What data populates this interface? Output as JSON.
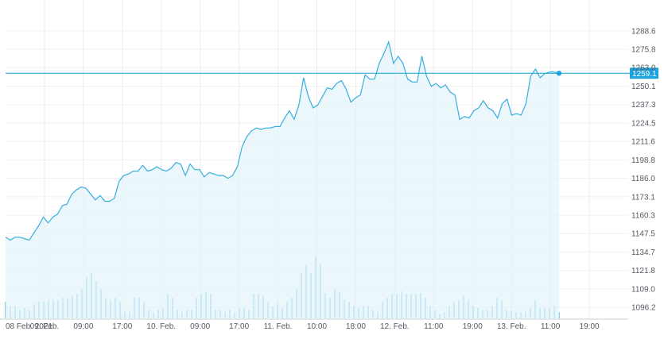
{
  "chart_data": {
    "type": "line",
    "title": "",
    "xlabel": "",
    "ylabel": "",
    "x_tick_labels": [
      "08 Feb. 2021",
      "09. Feb.",
      "09:00",
      "17:00",
      "10. Feb.",
      "09:00",
      "17:00",
      "11. Feb.",
      "10:00",
      "18:00",
      "12. Feb.",
      "11:00",
      "19:00",
      "13. Feb.",
      "11:00",
      "19:00"
    ],
    "y_tick_labels": [
      "1288.6",
      "1275.8",
      "1263.0",
      "1250.1",
      "1237.3",
      "1224.5",
      "1211.6",
      "1198.8",
      "1186.0",
      "1173.1",
      "1160.3",
      "1147.5",
      "1134.7",
      "1121.8",
      "1109.0",
      "1096.2"
    ],
    "ylim": [
      1088.5,
      1298.5
    ],
    "x_range_hours": [
      0,
      144
    ],
    "grid": true,
    "last_value_label": "1259.1",
    "series": [
      {
        "values": [
          1145,
          1143,
          1145,
          1145,
          1144,
          1143,
          1148,
          1153,
          1159,
          1155,
          1159,
          1161,
          1167,
          1168,
          1175,
          1178,
          1180,
          1179,
          1175,
          1171,
          1174,
          1170,
          1170,
          1172,
          1184,
          1188,
          1189,
          1191,
          1191,
          1195,
          1191,
          1192,
          1194,
          1192,
          1191,
          1193,
          1197,
          1196,
          1188,
          1196,
          1192,
          1192,
          1187,
          1190,
          1189,
          1188,
          1188,
          1186,
          1188,
          1194,
          1208,
          1215,
          1219,
          1221,
          1220,
          1221,
          1221,
          1222,
          1222,
          1228,
          1233,
          1227,
          1237,
          1256,
          1243,
          1235,
          1237,
          1243,
          1249,
          1248,
          1252,
          1254,
          1248,
          1239,
          1242,
          1244,
          1258,
          1255,
          1255,
          1266,
          1273,
          1281,
          1266,
          1271,
          1266,
          1255,
          1253,
          1253,
          1271,
          1257,
          1250,
          1252,
          1249,
          1251,
          1246,
          1244,
          1227,
          1229,
          1228,
          1233,
          1235,
          1240,
          1235,
          1233,
          1228,
          1238,
          1241,
          1230,
          1231,
          1230,
          1238,
          1257,
          1262,
          1256,
          1259,
          1260,
          1260,
          1259.1
        ]
      },
      {
        "name": "Volume",
        "values": [
          8,
          6,
          6,
          4,
          5,
          4,
          7,
          8,
          8,
          9,
          9,
          9,
          10,
          10,
          11,
          12,
          14,
          20,
          22,
          18,
          14,
          10,
          9,
          10,
          8,
          3,
          3,
          10,
          10,
          8,
          4,
          3,
          4,
          5,
          12,
          10,
          4,
          3,
          4,
          4,
          10,
          12,
          13,
          12,
          4,
          4,
          3,
          4,
          3,
          5,
          5,
          4,
          12,
          12,
          11,
          8,
          6,
          7,
          5,
          8,
          10,
          14,
          22,
          26,
          22,
          30,
          26,
          12,
          10,
          14,
          13,
          9,
          8,
          6,
          5,
          6,
          6,
          4,
          3,
          8,
          10,
          12,
          12,
          13,
          12,
          12,
          12,
          12,
          10,
          6,
          4,
          2,
          3,
          6,
          8,
          9,
          11,
          9,
          6,
          5,
          4,
          4,
          6,
          10,
          9,
          4,
          4,
          3,
          3,
          3,
          5,
          9,
          5,
          5,
          5,
          6,
          3
        ]
      }
    ]
  }
}
